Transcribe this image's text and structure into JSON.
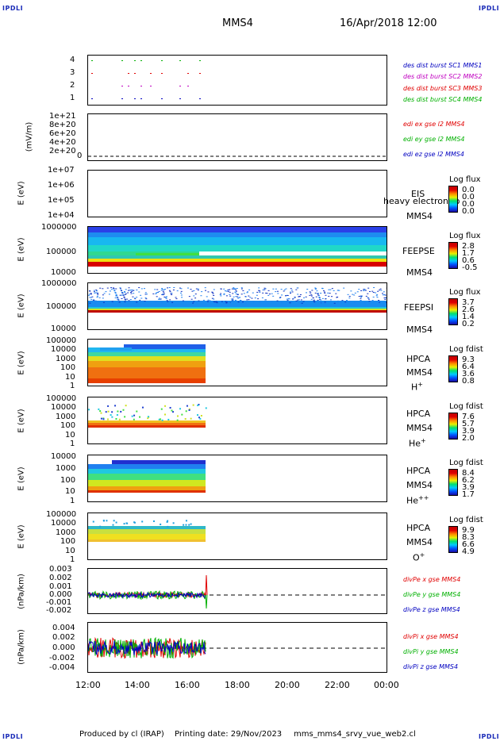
{
  "header": {
    "corner_label": "IPDLI",
    "spacecraft": "MMS4",
    "datetime": "16/Apr/2018 12:00"
  },
  "footer": {
    "produced_by": "Produced by cl (IRAP)",
    "printing_date": "Printing date: 29/Nov/2023",
    "filename": "mms_mms4_srvy_vue_web2.cl"
  },
  "colors": {
    "red": "#e00000",
    "green": "#00b000",
    "blue": "#0000c0",
    "magenta": "#c000c0",
    "dashed": "#000000"
  },
  "chart_data": [
    {
      "type": "scatter",
      "panel": "dist-burst",
      "ylim": [
        0.5,
        4.5
      ],
      "y_ticks": [
        "4",
        "3",
        "2",
        "1"
      ],
      "legend": [
        {
          "text": "des dist burst SC1 MMS1",
          "color": "#0000c0"
        },
        {
          "text": "des dist burst SC2 MMS2",
          "color": "#c000c0"
        },
        {
          "text": "des dist burst SC3 MMS3",
          "color": "#e00000"
        },
        {
          "text": "des dist burst SC4 MMS4",
          "color": "#00b000"
        }
      ]
    },
    {
      "type": "line",
      "panel": "edi",
      "ylabel": "(mV/m)",
      "y_ticks": [
        "1e+21",
        "8e+20",
        "6e+20",
        "4e+20",
        "2e+20",
        "0"
      ],
      "legend": [
        {
          "text": "edi ex gse l2 MMS4",
          "color": "#e00000"
        },
        {
          "text": "edi ey gse l2 MMS4",
          "color": "#00b000"
        },
        {
          "text": "edi ez gse l2 MMS4",
          "color": "#0000c0"
        }
      ]
    },
    {
      "type": "heatmap",
      "panel": "eis",
      "ylabel": "E (eV)",
      "y_ticks": [
        "1e+07",
        "1e+06",
        "1e+05",
        "1e+04"
      ],
      "instrument": "EIS",
      "overlay": "heavy electron to",
      "sc": "MMS4",
      "cb_title": "Log flux",
      "cb_values": [
        "0.0",
        "0.0",
        "0.0",
        "0.0"
      ]
    },
    {
      "type": "heatmap",
      "panel": "feepse",
      "ylabel": "E (eV)",
      "y_ticks": [
        "1000000",
        "100000",
        "10000"
      ],
      "instrument": "FEEPSE",
      "sc": "MMS4",
      "cb_title": "Log flux",
      "cb_values": [
        "2.8",
        "1.7",
        "0.6",
        "-0.5"
      ]
    },
    {
      "type": "heatmap",
      "panel": "feepsi",
      "ylabel": "E (eV)",
      "y_ticks": [
        "1000000",
        "100000",
        "10000"
      ],
      "instrument": "FEEPSI",
      "sc": "MMS4",
      "cb_title": "Log flux",
      "cb_values": [
        "3.7",
        "2.6",
        "1.4",
        "0.2"
      ]
    },
    {
      "type": "heatmap",
      "panel": "hpca-h",
      "ylabel": "E (eV)",
      "y_ticks": [
        "100000",
        "10000",
        "1000",
        "100",
        "10",
        "1"
      ],
      "instrument": "HPCA",
      "sc": "MMS4",
      "species": "H",
      "species_sup": "+",
      "cb_title": "Log fdist",
      "cb_values": [
        "9.3",
        "6.4",
        "3.6",
        "0.8"
      ]
    },
    {
      "type": "heatmap",
      "panel": "hpca-he",
      "ylabel": "E (eV)",
      "y_ticks": [
        "100000",
        "10000",
        "1000",
        "100",
        "10",
        "1"
      ],
      "instrument": "HPCA",
      "sc": "MMS4",
      "species": "He",
      "species_sup": "+",
      "cb_title": "Log fdist",
      "cb_values": [
        "7.6",
        "5.7",
        "3.9",
        "2.0"
      ]
    },
    {
      "type": "heatmap",
      "panel": "hpca-hepp",
      "ylabel": "E (eV)",
      "y_ticks": [
        "10000",
        "1000",
        "100",
        "10",
        "1"
      ],
      "instrument": "HPCA",
      "sc": "MMS4",
      "species": "He",
      "species_sup": "++",
      "cb_title": "Log fdist",
      "cb_values": [
        "8.4",
        "6.2",
        "3.9",
        "1.7"
      ]
    },
    {
      "type": "heatmap",
      "panel": "hpca-o",
      "ylabel": "E (eV)",
      "y_ticks": [
        "100000",
        "10000",
        "1000",
        "100",
        "10",
        "1"
      ],
      "instrument": "HPCA",
      "sc": "MMS4",
      "species": "O",
      "species_sup": "+",
      "cb_title": "Log fdist",
      "cb_values": [
        "9.9",
        "8.3",
        "6.6",
        "4.9"
      ]
    },
    {
      "type": "line",
      "panel": "divpe",
      "ylabel": "(nPa/km)",
      "ylim": [
        -0.0025,
        0.003
      ],
      "y_ticks": [
        "0.003",
        "0.002",
        "0.001",
        "0.000",
        "-0.001",
        "-0.002"
      ],
      "legend": [
        {
          "text": "divPe x gse MMS4",
          "color": "#e00000"
        },
        {
          "text": "divPe y gse MMS4",
          "color": "#00b000"
        },
        {
          "text": "divPe z gse MMS4",
          "color": "#0000c0"
        }
      ]
    },
    {
      "type": "line",
      "panel": "divpi",
      "ylabel": "(nPa/km)",
      "ylim": [
        -0.005,
        0.0045
      ],
      "y_ticks": [
        "0.004",
        "0.002",
        "0.000",
        "-0.002",
        "-0.004"
      ],
      "legend": [
        {
          "text": "divPi x gse MMS4",
          "color": "#e00000"
        },
        {
          "text": "divPi y gse MMS4",
          "color": "#00b000"
        },
        {
          "text": "divPi z gse MMS4",
          "color": "#0000c0"
        }
      ]
    }
  ],
  "x_axis": {
    "ticks": [
      "12:00",
      "14:00",
      "16:00",
      "18:00",
      "20:00",
      "22:00",
      "00:00"
    ],
    "data_end_hour": 16.7
  }
}
